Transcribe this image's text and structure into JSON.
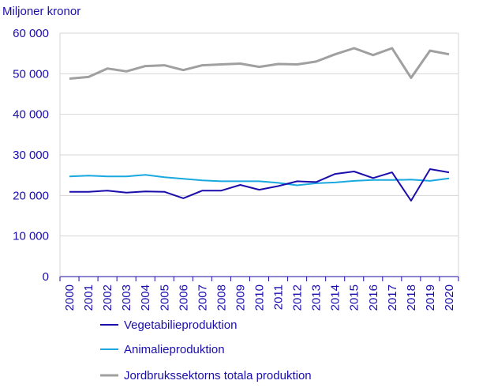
{
  "chart_data": {
    "type": "line",
    "ylabel": "Miljoner kronor",
    "xlabel": "",
    "title": "",
    "ylim": [
      0,
      60000
    ],
    "yticks": [
      0,
      10000,
      20000,
      30000,
      40000,
      50000,
      60000
    ],
    "ytick_labels": [
      "0",
      "10 000",
      "20 000",
      "30 000",
      "40 000",
      "50 000",
      "60 000"
    ],
    "x": [
      "2000",
      "2001",
      "2002",
      "2003",
      "2004",
      "2005",
      "2006",
      "2007",
      "2008",
      "2009",
      "2010",
      "2011",
      "2012",
      "2013",
      "2014",
      "2015",
      "2016",
      "2017",
      "2018",
      "2019",
      "2020"
    ],
    "grid": true,
    "legend_position": "bottom",
    "series": [
      {
        "name": "Vegetabilieproduktion",
        "color": "#1a0dab",
        "values": [
          20900,
          20900,
          21200,
          20700,
          21000,
          20900,
          19300,
          21200,
          21200,
          22600,
          21400,
          22300,
          23500,
          23300,
          25300,
          25900,
          24300,
          25700,
          18700,
          26500,
          25700
        ]
      },
      {
        "name": "Animalieproduktion",
        "color": "#19a8e0",
        "values": [
          24700,
          24900,
          24700,
          24700,
          25100,
          24500,
          24100,
          23700,
          23500,
          23500,
          23500,
          23100,
          22500,
          23000,
          23200,
          23600,
          23800,
          23800,
          23900,
          23600,
          24200
        ]
      },
      {
        "name": "Jordbrukssektorns totala produktion",
        "color": "#a0a0a0",
        "values": [
          48800,
          49200,
          51300,
          50600,
          51900,
          52100,
          50900,
          52100,
          52300,
          52500,
          51700,
          52400,
          52300,
          53000,
          54800,
          56300,
          54600,
          56300,
          49000,
          55700,
          54800
        ]
      }
    ]
  }
}
